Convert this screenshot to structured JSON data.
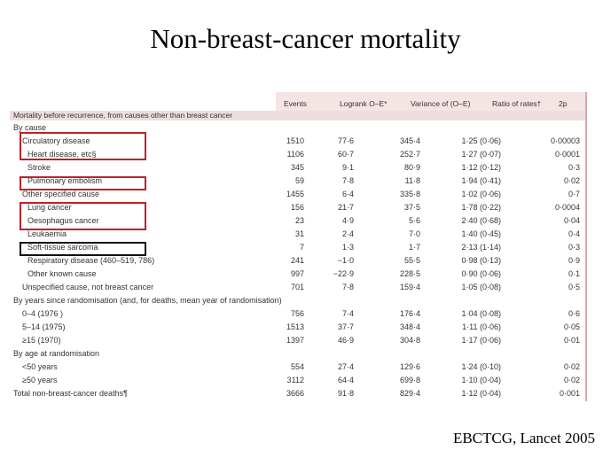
{
  "slide": {
    "title": "Non-breast-cancer mortality",
    "citation": "EBCTCG, Lancet 2005"
  },
  "table": {
    "columns": [
      "Events",
      "Logrank O–E*",
      "Variance of (O–E)",
      "Ratio of rates†",
      "2p"
    ],
    "title": "Mortality before recurrence, from causes other than breast cancer",
    "rows": [
      {
        "label": "By cause",
        "indent": 0,
        "values": [
          "",
          "",
          "",
          "",
          ""
        ]
      },
      {
        "label": "Circulatory disease",
        "indent": 1,
        "values": [
          "1510",
          "77·6",
          "345·4",
          "1·25 (0·06)",
          "0·00003"
        ]
      },
      {
        "label": "Heart disease, etc§",
        "indent": 2,
        "values": [
          "1106",
          "60·7",
          "252·7",
          "1·27 (0·07)",
          "0·0001"
        ]
      },
      {
        "label": "Stroke",
        "indent": 2,
        "values": [
          "345",
          "9·1",
          "80·9",
          "1·12 (0·12)",
          "0·3"
        ]
      },
      {
        "label": "Pulmonary embolism",
        "indent": 2,
        "values": [
          "59",
          "7·8",
          "11·8",
          "1·94 (0·41)",
          "0·02"
        ]
      },
      {
        "label": "Other specified cause",
        "indent": 1,
        "values": [
          "1455",
          "6·4",
          "335·8",
          "1·02 (0·06)",
          "0·7"
        ]
      },
      {
        "label": "Lung cancer",
        "indent": 2,
        "values": [
          "156",
          "21·7",
          "37·5",
          "1·78 (0·22)",
          "0·0004"
        ]
      },
      {
        "label": "Oesophagus cancer",
        "indent": 2,
        "values": [
          "23",
          "4·9",
          "5·6",
          "2·40 (0·68)",
          "0·04"
        ]
      },
      {
        "label": "Leukaemia",
        "indent": 2,
        "values": [
          "31",
          "2·4",
          "7·0",
          "1·40 (0·45)",
          "0·4"
        ]
      },
      {
        "label": "Soft-tissue sarcoma",
        "indent": 2,
        "values": [
          "7",
          "1·3",
          "1·7",
          "2·13 (1·14)",
          "0·3"
        ]
      },
      {
        "label": "Respiratory disease (460–519, 786)",
        "indent": 2,
        "values": [
          "241",
          "−1·0",
          "55·5",
          "0·98 (0·13)",
          "0·9"
        ]
      },
      {
        "label": "Other known cause",
        "indent": 2,
        "values": [
          "997",
          "−22·9",
          "228·5",
          "0·90 (0·06)",
          "0·1"
        ]
      },
      {
        "label": "Unspecified cause, not breast cancer",
        "indent": 1,
        "values": [
          "701",
          "7·8",
          "159·4",
          "1·05 (0·08)",
          "0·5"
        ]
      },
      {
        "label": "By years since randomisation (and, for deaths, mean year of randomisation)",
        "indent": 0,
        "values": [
          "",
          "",
          "",
          "",
          ""
        ]
      },
      {
        "label": "0–4 (1976 )",
        "indent": 1,
        "values": [
          "756",
          "7·4",
          "176·4",
          "1·04 (0·08)",
          "0·6"
        ]
      },
      {
        "label": "5–14 (1975)",
        "indent": 1,
        "values": [
          "1513",
          "37·7",
          "348·4",
          "1·11 (0·06)",
          "0·05"
        ]
      },
      {
        "label": "≥15 (1970)",
        "indent": 1,
        "values": [
          "1397",
          "46·9",
          "304·8",
          "1·17 (0·06)",
          "0·01"
        ]
      },
      {
        "label": "By age at randomisation",
        "indent": 0,
        "values": [
          "",
          "",
          "",
          "",
          ""
        ]
      },
      {
        "label": "<50 years",
        "indent": 1,
        "values": [
          "554",
          "27·4",
          "129·6",
          "1·24 (0·10)",
          "0·02"
        ]
      },
      {
        "label": "≥50 years",
        "indent": 1,
        "values": [
          "3112",
          "64·4",
          "699·8",
          "1·10 (0·04)",
          "0·02"
        ]
      },
      {
        "label": "Total non-breast-cancer deaths¶",
        "indent": 0,
        "values": [
          "3666",
          "91·8",
          "829·4",
          "1·12 (0·04)",
          "0·001"
        ]
      }
    ]
  },
  "colors": {
    "highlight_red": "#c0202a",
    "highlight_black": "#111111",
    "header_bg": "#f4e4e4"
  }
}
